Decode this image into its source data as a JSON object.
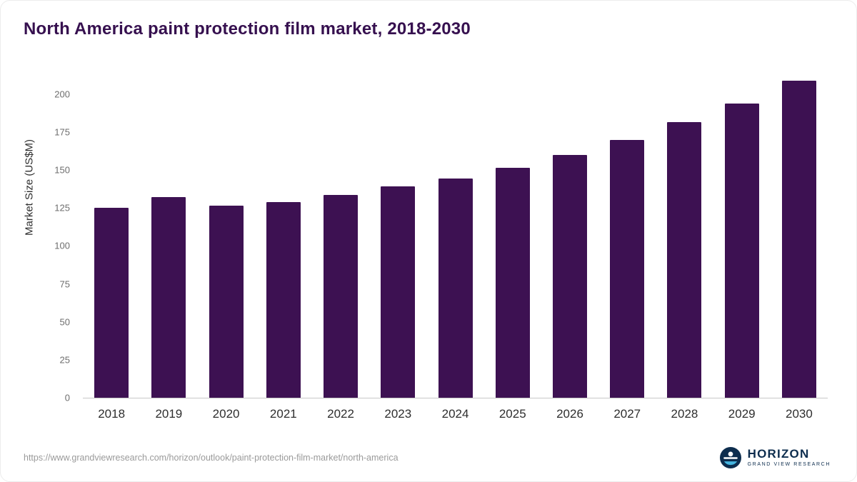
{
  "title": "North America paint protection film market, 2018-2030",
  "chart_data": {
    "type": "bar",
    "title": "North America paint protection film market, 2018-2030",
    "categories": [
      "2018",
      "2019",
      "2020",
      "2021",
      "2022",
      "2023",
      "2024",
      "2025",
      "2026",
      "2027",
      "2028",
      "2029",
      "2030"
    ],
    "values": [
      125,
      132,
      126.5,
      129,
      133.5,
      139,
      144.5,
      151.5,
      160,
      170,
      181.5,
      194,
      209
    ],
    "xlabel": "",
    "ylabel": "Market Size (US$M)",
    "ylim": [
      0,
      214
    ],
    "yticks": [
      0,
      25,
      50,
      75,
      100,
      125,
      150,
      175,
      200
    ],
    "grid": false,
    "legend": false,
    "bar_color": "#3d1152"
  },
  "colors": {
    "title": "#36104f",
    "bar": "#3d1152",
    "axis": "#c9c9c9"
  },
  "footer": {
    "source_url": "https://www.grandviewresearch.com/horizon/outlook/paint-protection-film-market/north-america",
    "logo": {
      "name": "HORIZON",
      "subtitle": "GRAND VIEW RESEARCH"
    }
  }
}
